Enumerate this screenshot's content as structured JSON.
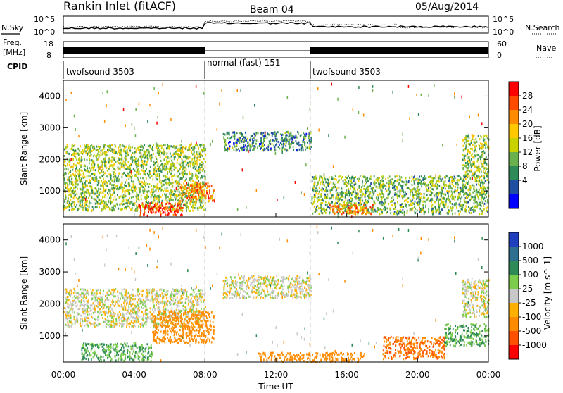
{
  "header": {
    "radar": "Rankin Inlet (fitACF)",
    "beam": "Beam 04",
    "date": "05/Aug/2014"
  },
  "noise_panel": {
    "left_label": "N.Sky",
    "right_label": "N.Search",
    "left_ticks": [
      "10^5",
      "10^0"
    ],
    "right_ticks": [
      "10^5",
      "10^0"
    ]
  },
  "freq_panel": {
    "left_label_1": "Freq.",
    "left_label_2": "[MHz]",
    "right_label": "Nave",
    "left_ticks": [
      "18",
      "8"
    ],
    "right_ticks": [
      "60",
      "0"
    ]
  },
  "cpid": {
    "label": "CPID",
    "segments": [
      {
        "label": "twofsound 3503",
        "start_hour": 0,
        "end_hour": 8
      },
      {
        "label": "normal (fast) 151",
        "start_hour": 8,
        "end_hour": 14
      },
      {
        "label": "twofsound 3503",
        "start_hour": 14,
        "end_hour": 24
      }
    ]
  },
  "power_colorbar": {
    "label": "Power [dB]",
    "ticks": [
      "28",
      "24",
      "20",
      "16",
      "12",
      "8",
      "4"
    ],
    "colors": [
      "#ff0000",
      "#ff4a00",
      "#ff8c00",
      "#ffc800",
      "#c8d200",
      "#6ab04c",
      "#2e8b57",
      "#1f4fa0",
      "#0000ff"
    ]
  },
  "velocity_colorbar": {
    "label": "Velocity [m s^-1]",
    "ticks": [
      "1000",
      "500",
      "100",
      "25",
      "-25",
      "-100",
      "-500",
      "-1000"
    ],
    "colors": [
      "#1f3fbf",
      "#2e6e8e",
      "#2e8b57",
      "#7ccd4c",
      "#c8c8c8",
      "#ffb000",
      "#ff8c00",
      "#ff5000",
      "#ff0000"
    ]
  },
  "chart_data": [
    {
      "type": "heatmap",
      "title": "Power",
      "ylabel": "Slant Range [km]",
      "xlabel": "",
      "xlim": [
        0,
        24
      ],
      "ylim": [
        180,
        4500
      ],
      "yticks": [
        "4000",
        "3000",
        "2000",
        "1000"
      ],
      "ytick_values": [
        4000,
        3000,
        2000,
        1000
      ],
      "scatter_regions": [
        {
          "t0": 0.0,
          "t1": 8.0,
          "r0": 400,
          "r1": 2500,
          "value": 12
        },
        {
          "t0": 4.2,
          "t1": 6.8,
          "r0": 250,
          "r1": 650,
          "value": 29
        },
        {
          "t0": 6.5,
          "t1": 8.5,
          "r0": 700,
          "r1": 1300,
          "value": 22
        },
        {
          "t0": 9.0,
          "t1": 14.0,
          "r0": 2300,
          "r1": 2900,
          "value": 6
        },
        {
          "t0": 14.0,
          "t1": 24.0,
          "r0": 300,
          "r1": 1500,
          "value": 10
        },
        {
          "t0": 15.0,
          "t1": 17.5,
          "r0": 300,
          "r1": 600,
          "value": 24
        },
        {
          "t0": 22.5,
          "t1": 24.0,
          "r0": 1500,
          "r1": 2800,
          "value": 12
        }
      ]
    },
    {
      "type": "heatmap",
      "title": "Velocity",
      "ylabel": "Slant Range [km]",
      "xlabel": "Time UT",
      "xlim": [
        0,
        24
      ],
      "ylim": [
        180,
        4500
      ],
      "xticks": [
        "00:00",
        "04:00",
        "08:00",
        "12:00",
        "16:00",
        "20:00",
        "00:00"
      ],
      "xtick_values": [
        0,
        4,
        8,
        12,
        16,
        20,
        24
      ],
      "yticks": [
        "4000",
        "3000",
        "2000",
        "1000"
      ],
      "ytick_values": [
        4000,
        3000,
        2000,
        1000
      ],
      "scatter_regions": [
        {
          "t0": 0.0,
          "t1": 8.0,
          "r0": 1300,
          "r1": 2500,
          "value": 0
        },
        {
          "t0": 1.0,
          "t1": 5.0,
          "r0": 250,
          "r1": 800,
          "value": 100
        },
        {
          "t0": 5.0,
          "t1": 8.5,
          "r0": 800,
          "r1": 1800,
          "value": -200
        },
        {
          "t0": 9.0,
          "t1": 14.0,
          "r0": 2200,
          "r1": 2900,
          "value": 0
        },
        {
          "t0": 11.0,
          "t1": 17.0,
          "r0": 200,
          "r1": 500,
          "value": -300
        },
        {
          "t0": 18.0,
          "t1": 21.5,
          "r0": 300,
          "r1": 1000,
          "value": -500
        },
        {
          "t0": 21.5,
          "t1": 24.0,
          "r0": 700,
          "r1": 1400,
          "value": 100
        },
        {
          "t0": 22.5,
          "t1": 24.0,
          "r0": 1600,
          "r1": 2800,
          "value": 0
        }
      ]
    }
  ]
}
